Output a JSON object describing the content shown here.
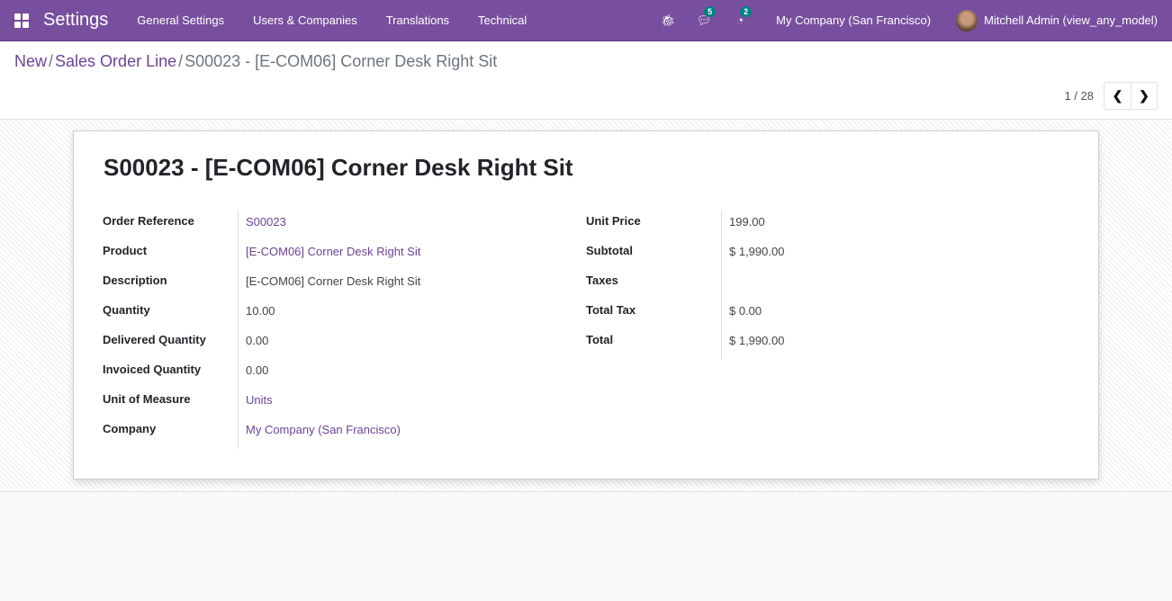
{
  "navbar": {
    "app": "Settings",
    "menu": [
      "General Settings",
      "Users & Companies",
      "Translations",
      "Technical"
    ],
    "messages_count": "5",
    "activities_count": "2",
    "company": "My Company (San Francisco)",
    "user": "Mitchell Admin (view_any_model)"
  },
  "breadcrumb": {
    "items": [
      "New",
      "Sales Order Line"
    ],
    "current": "S00023 - [E-COM06] Corner Desk Right Sit",
    "separator": "/"
  },
  "pager": {
    "value": "1 / 28"
  },
  "form": {
    "title": "S00023 - [E-COM06] Corner Desk Right Sit",
    "left": [
      {
        "label": "Order Reference",
        "value": "S00023",
        "link": true
      },
      {
        "label": "Product",
        "value": "[E-COM06] Corner Desk Right Sit",
        "link": true
      },
      {
        "label": "Description",
        "value": "[E-COM06] Corner Desk Right Sit",
        "link": false
      },
      {
        "label": "Quantity",
        "value": "10.00",
        "link": false
      },
      {
        "label": "Delivered Quantity",
        "value": "0.00",
        "link": false
      },
      {
        "label": "Invoiced Quantity",
        "value": "0.00",
        "link": false
      },
      {
        "label": "Unit of Measure",
        "value": "Units",
        "link": true
      },
      {
        "label": "Company",
        "value": "My Company (San Francisco)",
        "link": true
      }
    ],
    "right": [
      {
        "label": "Unit Price",
        "value": "199.00"
      },
      {
        "label": "Subtotal",
        "value": "$ 1,990.00"
      },
      {
        "label": "Taxes",
        "value": ""
      },
      {
        "label": "Total Tax",
        "value": "$ 0.00"
      },
      {
        "label": "Total",
        "value": "$ 1,990.00"
      }
    ]
  }
}
